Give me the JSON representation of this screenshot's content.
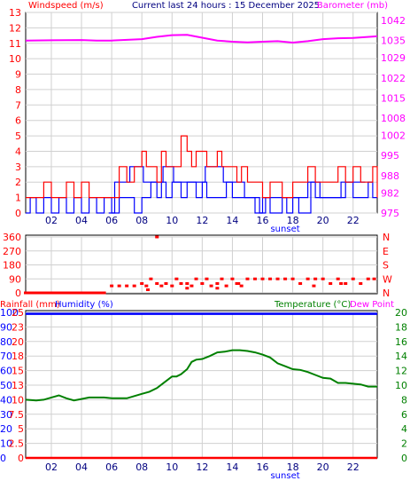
{
  "header": {
    "left_title": "Windspeed (m/s)",
    "center_title": "Current last 24 hours : 15 December 2025",
    "right_title": "Barometer (mb)",
    "rain_label": "Rainfall (mm)",
    "humidity_label": "Humidity (%)",
    "temperature_label": "Temperature (°C)",
    "dewpoint_label": "Dew Point"
  },
  "colors": {
    "wind": "#ff0000",
    "gust": "#0000ff",
    "barometer": "#ff00ff",
    "direction": "#ff0000",
    "rain": "#ff0000",
    "humidity": "#0000ff",
    "temperature": "#008000",
    "dewpoint": "#ff00ff",
    "sun": "#0000ff"
  },
  "chart_data": [
    {
      "type": "line",
      "name": "windspeed-barometer",
      "hour_ticks": [
        "02",
        "04",
        "06",
        "08",
        "10",
        "12",
        "14",
        "16",
        "18",
        "20",
        "22"
      ],
      "sun_event": {
        "label": "sunset",
        "hour": 17.5
      },
      "y_left": {
        "label": "Windspeed (m/s)",
        "ticks": [
          0,
          1,
          2,
          3,
          4,
          5,
          6,
          7,
          8,
          9,
          10,
          11,
          12,
          13
        ],
        "range": [
          0,
          13
        ]
      },
      "y_right": {
        "label": "Barometer (mb)",
        "ticks": [
          975,
          982,
          988,
          995,
          1002,
          1008,
          1015,
          1022,
          1029,
          1035,
          1042
        ],
        "range": [
          975,
          1044.8
        ]
      },
      "x_range": [
        0.3,
        23.6
      ],
      "barometer": {
        "x": [
          0.3,
          2,
          4,
          5,
          6,
          8,
          9,
          10,
          11,
          12,
          13,
          14,
          15,
          16,
          17,
          18,
          19,
          20,
          21,
          22,
          23.6
        ],
        "y": [
          1035,
          1035.1,
          1035.2,
          1035,
          1035,
          1035.5,
          1036.3,
          1036.9,
          1037,
          1036,
          1035,
          1034.6,
          1034.4,
          1034.6,
          1034.8,
          1034.3,
          1034.8,
          1035.5,
          1035.8,
          1035.9,
          1036.5
        ]
      },
      "wind_max": {
        "x": [
          0.3,
          0.6,
          1,
          1.5,
          2,
          2.5,
          3,
          3.5,
          4,
          4.5,
          5,
          5.5,
          6,
          6.5,
          7,
          7.5,
          8,
          8.3,
          8.6,
          9,
          9.3,
          9.6,
          10,
          10.3,
          10.6,
          11,
          11.3,
          11.6,
          12,
          12.3,
          12.6,
          13,
          13.3,
          13.6,
          14,
          14.3,
          14.6,
          15,
          15.5,
          16,
          16.5,
          17,
          17.3,
          17.6,
          18,
          18.3,
          18.6,
          19,
          19.5,
          20,
          20.5,
          21,
          21.5,
          22,
          22.5,
          23,
          23.3,
          23.6
        ],
        "y": [
          1,
          1,
          1,
          2,
          1,
          1,
          2,
          1,
          2,
          1,
          1,
          1,
          1,
          3,
          2,
          3,
          4,
          3,
          3,
          2,
          4,
          3,
          3,
          3,
          5,
          4,
          3,
          4,
          4,
          3,
          3,
          4,
          3,
          3,
          3,
          2,
          3,
          2,
          2,
          1,
          2,
          2,
          1,
          1,
          2,
          2,
          2,
          3,
          2,
          2,
          2,
          3,
          2,
          3,
          2,
          2,
          3,
          1
        ]
      },
      "wind_avg": {
        "x": [
          0.3,
          0.6,
          1,
          1.5,
          2,
          2.5,
          3,
          3.5,
          4,
          4.5,
          5,
          5.5,
          6,
          6.5,
          7,
          7.5,
          8,
          8.3,
          8.6,
          9,
          9.3,
          9.6,
          10,
          10.3,
          10.6,
          11,
          11.3,
          11.6,
          12,
          12.3,
          12.6,
          13,
          13.3,
          13.6,
          14,
          14.3,
          14.6,
          15,
          15.5,
          16,
          16.5,
          17,
          17.3,
          17.6,
          18,
          18.3,
          18.6,
          19,
          19.5,
          20,
          20.5,
          21,
          21.5,
          22,
          22.5,
          23,
          23.3,
          23.6
        ],
        "y": [
          0,
          1,
          0,
          1,
          0,
          1,
          0,
          1,
          0,
          1,
          0,
          1,
          0,
          1,
          1,
          0,
          1,
          1,
          2,
          1,
          2,
          1,
          2,
          2,
          1,
          2,
          2,
          1,
          2,
          1,
          1,
          1,
          1,
          2,
          1,
          1,
          1,
          1,
          0,
          1,
          0,
          0,
          1,
          0,
          1,
          1,
          1,
          2,
          1,
          1,
          1,
          1,
          2,
          1,
          1,
          2,
          1,
          1
        ]
      },
      "wind_dev_extra": {
        "x": [
          5.8,
          6.2,
          7.2,
          8.1,
          9.4,
          10.1,
          11.2,
          12.2,
          13.4,
          14.1,
          14.8,
          15.8,
          16.2,
          17.8,
          18.4,
          19.2,
          19.8,
          21.2,
          22.8
        ],
        "y": [
          0,
          2,
          3,
          2,
          3,
          2,
          2,
          3,
          2,
          2,
          1,
          0,
          1,
          1,
          0,
          2,
          1,
          2,
          2
        ]
      }
    },
    {
      "type": "scatter",
      "name": "wind-direction",
      "y_left_ticks": [
        0,
        90,
        180,
        270,
        360
      ],
      "y_right_ticks": [
        "N",
        "W",
        "S",
        "E",
        "N"
      ],
      "y_range": [
        0,
        360
      ],
      "x_range": [
        0.3,
        23.6
      ],
      "direction": {
        "x": [
          0.3,
          1,
          2,
          3,
          4,
          5,
          5.5,
          6,
          6.5,
          7,
          7.5,
          8,
          8.3,
          8.6,
          9,
          9.3,
          9.6,
          10,
          10.3,
          10.6,
          11,
          11.3,
          11.6,
          12,
          12.3,
          12.6,
          13,
          13.3,
          13.6,
          14,
          14.3,
          14.6,
          15,
          15.5,
          16,
          16.5,
          17,
          17.5,
          18,
          18.5,
          19,
          19.5,
          20,
          20.5,
          21,
          21.5,
          22,
          22.5,
          23,
          23.4,
          9.0,
          8.4,
          11.0,
          13.0,
          14.4,
          19.4,
          21.2
        ],
        "y": [
          0,
          0,
          0,
          0,
          0,
          0,
          0,
          45,
          45,
          45,
          45,
          60,
          45,
          90,
          60,
          45,
          60,
          45,
          90,
          60,
          60,
          45,
          90,
          60,
          90,
          45,
          60,
          90,
          45,
          90,
          60,
          45,
          90,
          90,
          90,
          90,
          90,
          90,
          90,
          60,
          90,
          90,
          90,
          60,
          90,
          60,
          90,
          60,
          90,
          90,
          360,
          20,
          30,
          30,
          60,
          45,
          60
        ]
      }
    },
    {
      "type": "line",
      "name": "temperature-humidity-rain",
      "hour_ticks": [
        "02",
        "04",
        "06",
        "08",
        "10",
        "12",
        "14",
        "16",
        "18",
        "20",
        "22"
      ],
      "sun_event": {
        "label": "sunset",
        "hour": 17.5
      },
      "y_left_humidity_ticks": [
        0,
        10,
        20,
        30,
        40,
        50,
        60,
        70,
        80,
        90,
        100
      ],
      "y_left_rain_ticks": [
        0,
        2.5,
        5,
        7.5,
        10,
        13,
        15,
        18,
        20,
        23,
        25
      ],
      "y_right_temperature_ticks": [
        0,
        2,
        4,
        6,
        8,
        10,
        12,
        14,
        16,
        18,
        20
      ],
      "y_range_temperature": [
        0,
        20
      ],
      "x_range": [
        0.3,
        23.6
      ],
      "humidity": {
        "x": [
          0.3,
          23.6
        ],
        "y": [
          99,
          99
        ]
      },
      "rain": {
        "x": [
          0.3,
          23.6
        ],
        "y": [
          0,
          0
        ]
      },
      "temperature": {
        "x": [
          0.3,
          1,
          1.5,
          2,
          2.5,
          3,
          3.5,
          4,
          4.5,
          5,
          5.5,
          6,
          6.5,
          7,
          7.5,
          8,
          8.5,
          9,
          9.5,
          10,
          10.3,
          10.6,
          11,
          11.3,
          11.6,
          12,
          12.5,
          13,
          13.5,
          14,
          14.5,
          15,
          15.5,
          16,
          16.5,
          17,
          17.5,
          18,
          18.5,
          19,
          19.5,
          20,
          20.5,
          21,
          21.5,
          22,
          22.5,
          23,
          23.6
        ],
        "y": [
          8.0,
          7.9,
          8.0,
          8.3,
          8.6,
          8.2,
          7.9,
          8.1,
          8.3,
          8.3,
          8.3,
          8.2,
          8.2,
          8.2,
          8.5,
          8.8,
          9.1,
          9.6,
          10.4,
          11.2,
          11.2,
          11.5,
          12.2,
          13.2,
          13.5,
          13.6,
          14.0,
          14.5,
          14.6,
          14.8,
          14.8,
          14.7,
          14.5,
          14.2,
          13.8,
          13.0,
          12.6,
          12.2,
          12.1,
          11.8,
          11.4,
          11.0,
          10.9,
          10.3,
          10.3,
          10.2,
          10.1,
          9.8,
          9.8
        ]
      }
    }
  ]
}
